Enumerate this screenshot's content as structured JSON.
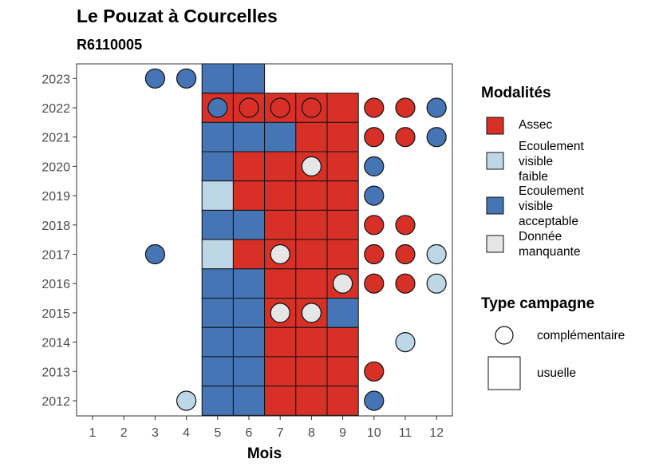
{
  "chart_data": {
    "type": "heatmap",
    "title": "Le Pouzat à Courcelles",
    "subtitle": "R6110005",
    "xlabel": "Mois",
    "ylabel": "",
    "x_ticks": [
      "1",
      "2",
      "3",
      "4",
      "5",
      "6",
      "7",
      "8",
      "9",
      "10",
      "11",
      "12"
    ],
    "y_ticks": [
      "2012",
      "2013",
      "2014",
      "2015",
      "2016",
      "2017",
      "2018",
      "2019",
      "2020",
      "2021",
      "2022",
      "2023"
    ],
    "grid": false,
    "legend_position": "right",
    "colors": {
      "assec": "#d73027",
      "faible": "#bdd7e7",
      "acceptable": "#4575b4",
      "manquante": "#e6e6e6"
    },
    "modalites": {
      "title": "Modalités",
      "items": [
        {
          "key": "assec",
          "lines": [
            "Assec"
          ]
        },
        {
          "key": "faible",
          "lines": [
            "Ecoulement",
            "visible",
            "faible"
          ]
        },
        {
          "key": "acceptable",
          "lines": [
            "Ecoulement",
            "visible",
            "acceptable"
          ]
        },
        {
          "key": "manquante",
          "lines": [
            "Donnée",
            "manquante"
          ]
        }
      ]
    },
    "campagnes": {
      "title": "Type campagne",
      "items": [
        {
          "key": "complementaire",
          "label": "complémentaire"
        },
        {
          "key": "usuelle",
          "label": "usuelle"
        }
      ]
    },
    "usuelle": [
      {
        "year": 2023,
        "months": {
          "5": "acceptable",
          "6": "acceptable"
        }
      },
      {
        "year": 2022,
        "months": {
          "5": "assec",
          "6": "assec",
          "7": "assec",
          "8": "assec",
          "9": "assec"
        }
      },
      {
        "year": 2021,
        "months": {
          "5": "acceptable",
          "6": "acceptable",
          "7": "acceptable",
          "8": "assec",
          "9": "assec"
        }
      },
      {
        "year": 2020,
        "months": {
          "5": "acceptable",
          "6": "assec",
          "7": "assec",
          "8": "assec",
          "9": "assec"
        }
      },
      {
        "year": 2019,
        "months": {
          "5": "faible",
          "6": "assec",
          "7": "assec",
          "8": "assec",
          "9": "assec"
        }
      },
      {
        "year": 2018,
        "months": {
          "5": "acceptable",
          "6": "acceptable",
          "7": "assec",
          "8": "assec",
          "9": "assec"
        }
      },
      {
        "year": 2017,
        "months": {
          "5": "faible",
          "6": "assec",
          "7": "assec",
          "8": "assec",
          "9": "assec"
        }
      },
      {
        "year": 2016,
        "months": {
          "5": "acceptable",
          "6": "acceptable",
          "7": "assec",
          "8": "assec",
          "9": "assec"
        }
      },
      {
        "year": 2015,
        "months": {
          "5": "acceptable",
          "6": "acceptable",
          "7": "assec",
          "8": "assec",
          "9": "acceptable"
        }
      },
      {
        "year": 2014,
        "months": {
          "5": "acceptable",
          "6": "acceptable",
          "7": "assec",
          "8": "assec",
          "9": "assec"
        }
      },
      {
        "year": 2013,
        "months": {
          "5": "acceptable",
          "6": "acceptable",
          "7": "assec",
          "8": "assec",
          "9": "assec"
        }
      },
      {
        "year": 2012,
        "months": {
          "5": "acceptable",
          "6": "acceptable",
          "7": "assec",
          "8": "assec",
          "9": "assec"
        }
      }
    ],
    "complementaire": [
      {
        "year": 2023,
        "month": 3,
        "value": "acceptable"
      },
      {
        "year": 2023,
        "month": 4,
        "value": "acceptable"
      },
      {
        "year": 2022,
        "month": 5,
        "value": "acceptable"
      },
      {
        "year": 2022,
        "month": 6,
        "value": "assec"
      },
      {
        "year": 2022,
        "month": 7,
        "value": "assec"
      },
      {
        "year": 2022,
        "month": 8,
        "value": "assec"
      },
      {
        "year": 2022,
        "month": 10,
        "value": "assec"
      },
      {
        "year": 2022,
        "month": 11,
        "value": "assec"
      },
      {
        "year": 2022,
        "month": 12,
        "value": "acceptable"
      },
      {
        "year": 2021,
        "month": 10,
        "value": "assec"
      },
      {
        "year": 2021,
        "month": 11,
        "value": "assec"
      },
      {
        "year": 2021,
        "month": 12,
        "value": "acceptable"
      },
      {
        "year": 2020,
        "month": 8,
        "value": "manquante"
      },
      {
        "year": 2020,
        "month": 10,
        "value": "acceptable"
      },
      {
        "year": 2019,
        "month": 10,
        "value": "acceptable"
      },
      {
        "year": 2018,
        "month": 10,
        "value": "assec"
      },
      {
        "year": 2018,
        "month": 11,
        "value": "assec"
      },
      {
        "year": 2017,
        "month": 3,
        "value": "acceptable"
      },
      {
        "year": 2017,
        "month": 7,
        "value": "manquante"
      },
      {
        "year": 2017,
        "month": 10,
        "value": "assec"
      },
      {
        "year": 2017,
        "month": 11,
        "value": "assec"
      },
      {
        "year": 2017,
        "month": 12,
        "value": "faible"
      },
      {
        "year": 2016,
        "month": 9,
        "value": "manquante"
      },
      {
        "year": 2016,
        "month": 10,
        "value": "assec"
      },
      {
        "year": 2016,
        "month": 11,
        "value": "assec"
      },
      {
        "year": 2016,
        "month": 12,
        "value": "faible"
      },
      {
        "year": 2015,
        "month": 7,
        "value": "manquante"
      },
      {
        "year": 2015,
        "month": 8,
        "value": "manquante"
      },
      {
        "year": 2014,
        "month": 11,
        "value": "faible"
      },
      {
        "year": 2013,
        "month": 10,
        "value": "assec"
      },
      {
        "year": 2012,
        "month": 4,
        "value": "faible"
      },
      {
        "year": 2012,
        "month": 10,
        "value": "acceptable"
      }
    ]
  }
}
